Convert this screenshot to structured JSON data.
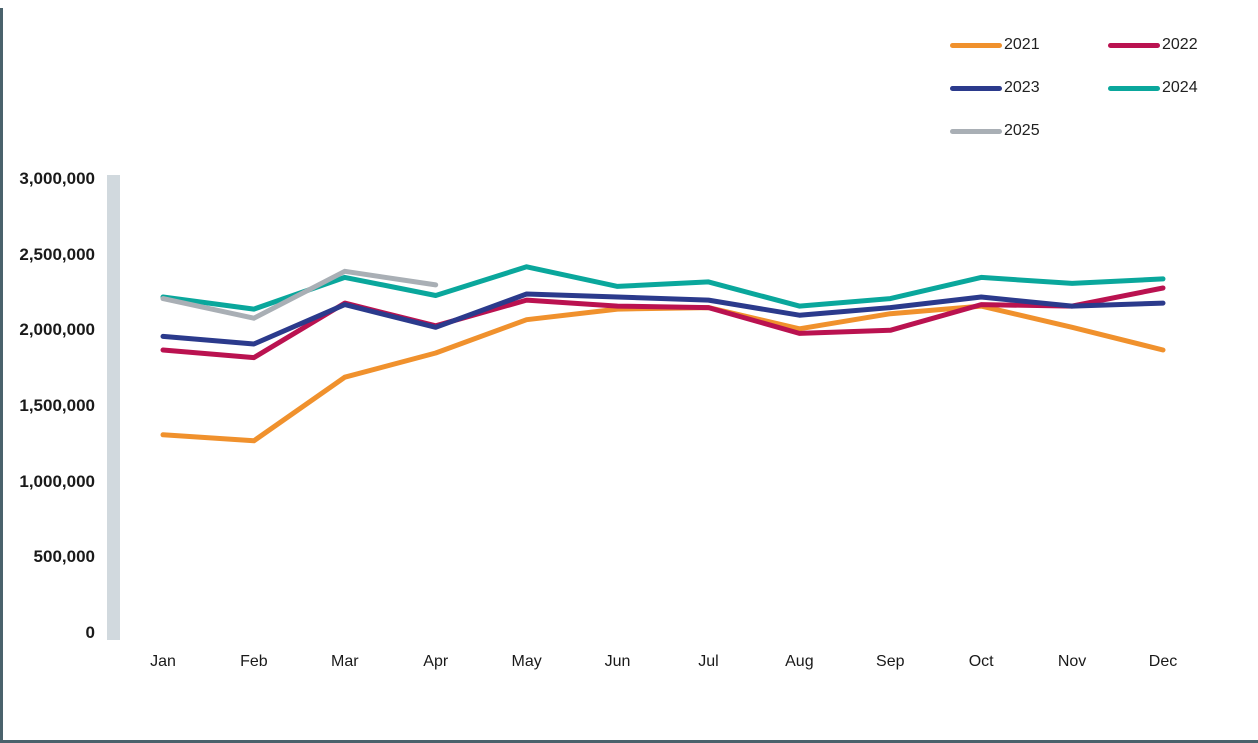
{
  "chart_data": {
    "type": "line",
    "title": "",
    "xlabel": "",
    "ylabel": "",
    "categories": [
      "Jan",
      "Feb",
      "Mar",
      "Apr",
      "May",
      "Jun",
      "Jul",
      "Aug",
      "Sep",
      "Oct",
      "Nov",
      "Dec"
    ],
    "series": [
      {
        "name": "2021",
        "color": "#F0912D",
        "values": [
          1310000,
          1270000,
          1690000,
          1850000,
          2070000,
          2140000,
          2150000,
          2010000,
          2110000,
          2160000,
          2020000,
          1870000
        ]
      },
      {
        "name": "2022",
        "color": "#BA1250",
        "values": [
          1870000,
          1820000,
          2180000,
          2030000,
          2200000,
          2160000,
          2150000,
          1980000,
          2000000,
          2170000,
          2160000,
          2280000
        ]
      },
      {
        "name": "2023",
        "color": "#2B3A8C",
        "values": [
          1960000,
          1910000,
          2170000,
          2020000,
          2240000,
          2220000,
          2200000,
          2100000,
          2150000,
          2220000,
          2160000,
          2180000
        ]
      },
      {
        "name": "2024",
        "color": "#0AA79C",
        "values": [
          2220000,
          2140000,
          2350000,
          2230000,
          2420000,
          2290000,
          2320000,
          2160000,
          2210000,
          2350000,
          2310000,
          2340000
        ]
      },
      {
        "name": "2025",
        "color": "#A9AFB5",
        "values": [
          2210000,
          2080000,
          2390000,
          2300000
        ]
      }
    ],
    "ylim": [
      0,
      3000000
    ],
    "ytick_step": 500000,
    "ytick_labels": [
      "0",
      "500,000",
      "1,000,000",
      "1,500,000",
      "2,000,000",
      "2,500,000",
      "3,000,000"
    ],
    "grid": false,
    "legend_position": "top-right",
    "legend_columns": [
      [
        "2021",
        "2022"
      ],
      [
        "2023",
        "2024"
      ],
      [
        "2025"
      ]
    ]
  }
}
